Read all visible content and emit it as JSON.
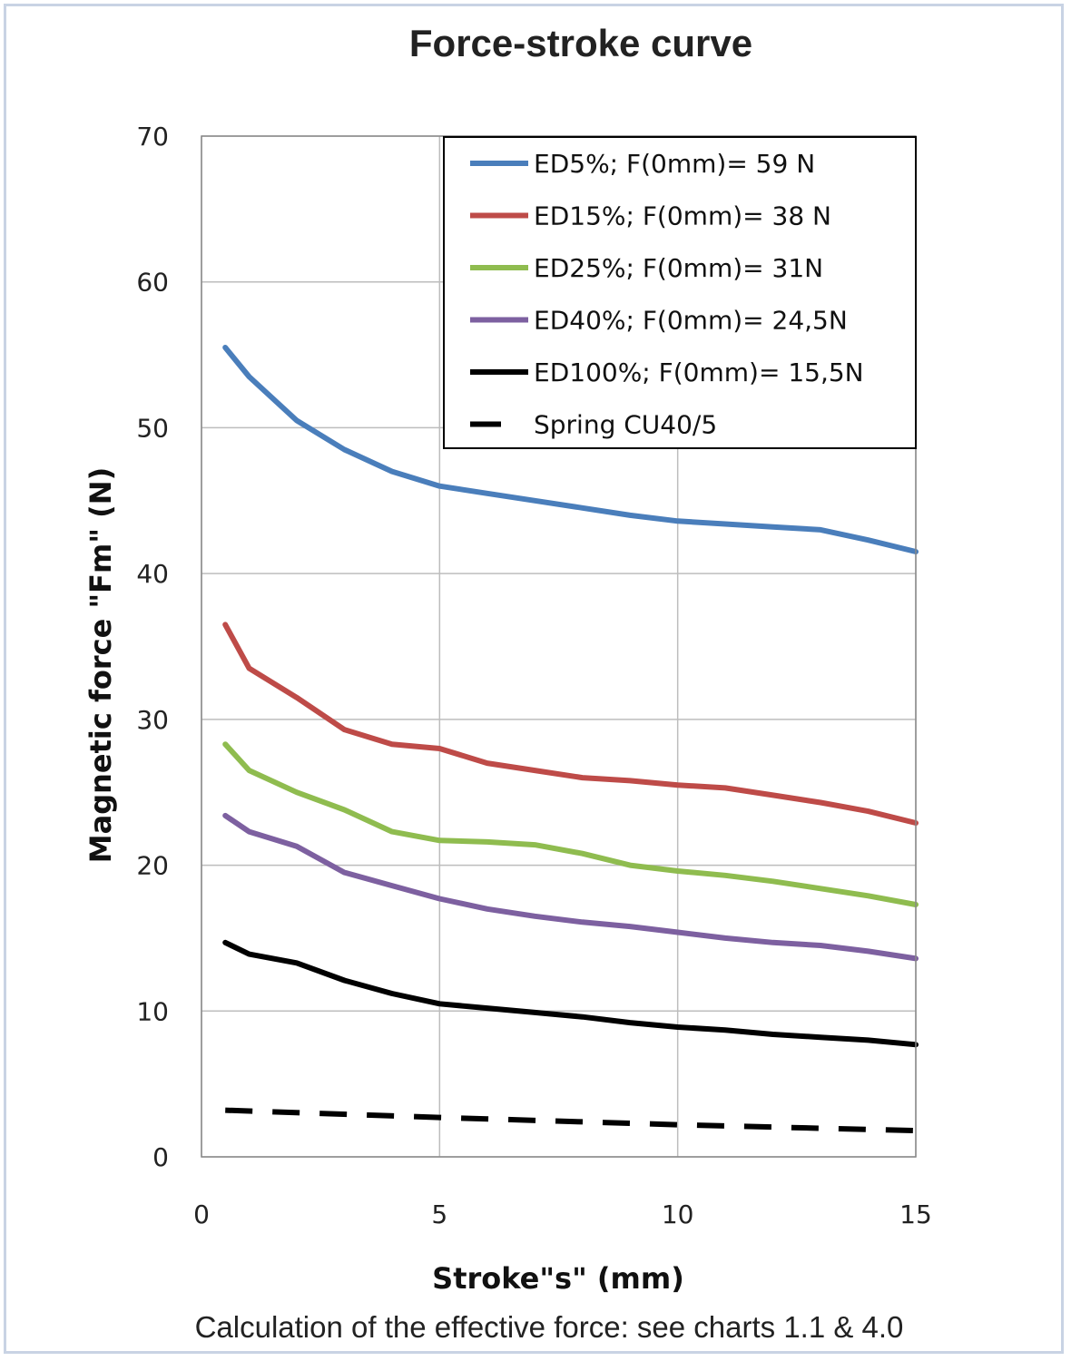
{
  "chart_data": {
    "type": "line",
    "title": "Force-stroke curve",
    "xlabel": "Stroke\"s\" (mm)",
    "ylabel": "Magnetic force \"Fm\"  (N)",
    "xlim": [
      0,
      15
    ],
    "ylim": [
      0,
      70
    ],
    "x_ticks": [
      "0",
      "5",
      "10",
      "15"
    ],
    "y_ticks": [
      "0",
      "10",
      "20",
      "30",
      "40",
      "50",
      "60",
      "70"
    ],
    "grid": true,
    "legend_position": "top-right",
    "caption": "Calculation of the effective force: see charts 1.1 & 4.0",
    "series": [
      {
        "name": "ED5%; F(0mm)= 59 N",
        "color": "#4a7ebb",
        "dash": false,
        "x": [
          0.5,
          1,
          2,
          3,
          4,
          5,
          6,
          7,
          8,
          9,
          10,
          11,
          12,
          13,
          14,
          15
        ],
        "y": [
          55.5,
          53.5,
          50.5,
          48.5,
          47,
          46,
          45.5,
          45,
          44.5,
          44,
          43.6,
          43.4,
          43.2,
          43,
          42.3,
          41.5
        ]
      },
      {
        "name": "ED15%; F(0mm)= 38 N",
        "color": "#be4b48",
        "dash": false,
        "x": [
          0.5,
          1,
          2,
          3,
          4,
          5,
          6,
          7,
          8,
          9,
          10,
          11,
          12,
          13,
          14,
          15
        ],
        "y": [
          36.5,
          33.5,
          31.5,
          29.3,
          28.3,
          28,
          27,
          26.5,
          26,
          25.8,
          25.5,
          25.3,
          24.8,
          24.3,
          23.7,
          22.9
        ]
      },
      {
        "name": "ED25%; F(0mm)= 31N",
        "color": "#8fbc4f",
        "dash": false,
        "x": [
          0.5,
          1,
          2,
          3,
          4,
          5,
          6,
          7,
          8,
          9,
          10,
          11,
          12,
          13,
          14,
          15
        ],
        "y": [
          28.3,
          26.5,
          25,
          23.8,
          22.3,
          21.7,
          21.6,
          21.4,
          20.8,
          20,
          19.6,
          19.3,
          18.9,
          18.4,
          17.9,
          17.3
        ]
      },
      {
        "name": "ED40%; F(0mm)= 24,5N",
        "color": "#7d60a0",
        "dash": false,
        "x": [
          0.5,
          1,
          2,
          3,
          4,
          5,
          6,
          7,
          8,
          9,
          10,
          11,
          12,
          13,
          14,
          15
        ],
        "y": [
          23.4,
          22.3,
          21.3,
          19.5,
          18.6,
          17.7,
          17,
          16.5,
          16.1,
          15.8,
          15.4,
          15,
          14.7,
          14.5,
          14.1,
          13.6
        ]
      },
      {
        "name": "ED100%; F(0mm)= 15,5N",
        "color": "#000000",
        "dash": false,
        "x": [
          0.5,
          1,
          2,
          3,
          4,
          5,
          6,
          7,
          8,
          9,
          10,
          11,
          12,
          13,
          14,
          15
        ],
        "y": [
          14.7,
          13.9,
          13.3,
          12.1,
          11.2,
          10.5,
          10.2,
          9.9,
          9.6,
          9.2,
          8.9,
          8.7,
          8.4,
          8.2,
          8,
          7.7
        ]
      },
      {
        "name": "Spring CU40/5",
        "color": "#000000",
        "dash": true,
        "x": [
          0.5,
          5,
          10,
          15
        ],
        "y": [
          3.2,
          2.7,
          2.2,
          1.8
        ]
      }
    ]
  }
}
